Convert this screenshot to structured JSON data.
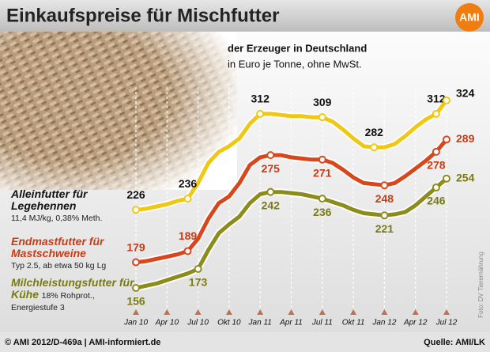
{
  "chart_data": {
    "type": "line",
    "title": "Einkaufspreise für Mischfutter",
    "subtitle": "der Erzeuger in Deutschland",
    "unit_note": "in Euro je Tonne, ohne MwSt.",
    "logo": "AMI",
    "footer_left": "© AMI 2012/D-469a | AMI-informiert.de",
    "source": "Quelle: AMI/LK",
    "photo_credit": "Foto: DV Tierernährung",
    "categories": [
      "Jan 10",
      null,
      null,
      "Apr 10",
      null,
      null,
      "Jul 10",
      null,
      null,
      "Okt 10",
      null,
      null,
      "Jan 11",
      null,
      null,
      "Apr 11",
      null,
      null,
      "Jul 11",
      null,
      null,
      "Okt 11",
      null,
      null,
      "Jan 12",
      null,
      null,
      "Apr 12",
      null,
      null,
      "Jul 12"
    ],
    "series": [
      {
        "name": "Alleinfutter für Legehennen",
        "note": "11,4 MJ/kg, 0,38% Meth.",
        "color": "#f0c814",
        "text_color": "#111111",
        "values": [
          226,
          227,
          229,
          231,
          234,
          236,
          250,
          268,
          278,
          283,
          290,
          303,
          312,
          312,
          311,
          310,
          310,
          309,
          309,
          305,
          298,
          290,
          283,
          282,
          282,
          285,
          292,
          300,
          307,
          312,
          324
        ],
        "value_labels": [
          "226",
          null,
          null,
          null,
          null,
          "236",
          null,
          null,
          null,
          null,
          null,
          null,
          "312",
          null,
          null,
          null,
          null,
          null,
          "309",
          null,
          null,
          null,
          null,
          "282",
          null,
          null,
          null,
          null,
          null,
          "312",
          "324"
        ]
      },
      {
        "name": "Endmastfutter für Mastschweine",
        "note": "Typ 2.5, ab etwa 50 kg Lg",
        "color": "#d8461c",
        "text_color": "#c83c14",
        "values": [
          179,
          180,
          182,
          184,
          186,
          189,
          200,
          218,
          232,
          238,
          250,
          266,
          273,
          275,
          275,
          273,
          272,
          271,
          271,
          268,
          262,
          255,
          250,
          249,
          248,
          250,
          256,
          263,
          270,
          278,
          289
        ],
        "value_labels": [
          "179",
          null,
          null,
          null,
          null,
          "189",
          null,
          null,
          null,
          null,
          null,
          null,
          null,
          "275",
          null,
          null,
          null,
          null,
          "271",
          null,
          null,
          null,
          null,
          null,
          "248",
          null,
          null,
          null,
          null,
          "278",
          "289"
        ]
      },
      {
        "name": "Milchleistungsfutter für Kühe",
        "note": "18% Rohprot., Energiestufe 3",
        "color": "#8c8c1c",
        "text_color": "#7a7a10",
        "values": [
          156,
          158,
          160,
          163,
          166,
          169,
          173,
          190,
          205,
          213,
          220,
          232,
          240,
          242,
          242,
          241,
          240,
          238,
          236,
          233,
          230,
          226,
          223,
          222,
          221,
          222,
          224,
          230,
          238,
          246,
          254
        ],
        "value_labels": [
          "156",
          null,
          null,
          null,
          null,
          null,
          "173",
          null,
          null,
          null,
          null,
          null,
          null,
          "242",
          null,
          null,
          null,
          null,
          "236",
          null,
          null,
          null,
          null,
          null,
          "221",
          null,
          null,
          null,
          null,
          "246",
          "254"
        ]
      }
    ]
  }
}
